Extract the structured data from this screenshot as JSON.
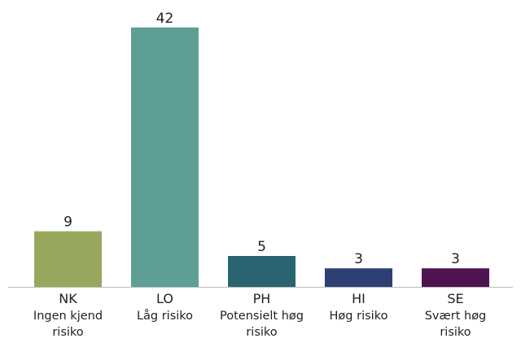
{
  "chart_data": {
    "type": "bar",
    "categories": [
      "NK",
      "LO",
      "PH",
      "HI",
      "SE"
    ],
    "category_descriptions": [
      "Ingen kjend risiko",
      "Låg risiko",
      "Potensielt høg risiko",
      "Høg risiko",
      "Svært høg risiko"
    ],
    "values": [
      9,
      42,
      5,
      3,
      3
    ],
    "colors": [
      "#97a85e",
      "#5e9e94",
      "#2a6470",
      "#2e3f73",
      "#4f1450"
    ]
  }
}
